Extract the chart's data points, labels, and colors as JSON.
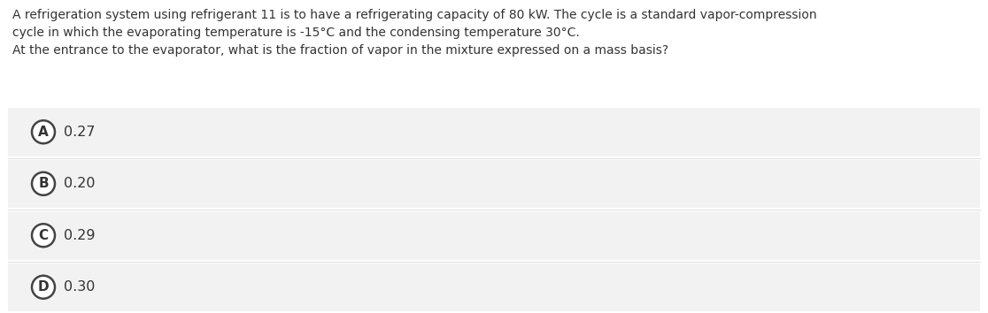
{
  "question_text_line1": "A refrigeration system using refrigerant 11 is to have a refrigerating capacity of 80 kW. The cycle is a standard vapor-compression",
  "question_text_line2": "cycle in which the evaporating temperature is -15°C and the condensing temperature 30°C.",
  "question_text_line3": "At the entrance to the evaporator, what is the fraction of vapor in the mixture expressed on a mass basis?",
  "options": [
    {
      "label": "A",
      "value": "0.27"
    },
    {
      "label": "B",
      "value": "0.20"
    },
    {
      "label": "C",
      "value": "0.29"
    },
    {
      "label": "D",
      "value": "0.30"
    }
  ],
  "bg_color": "#ffffff",
  "option_bg_color": "#f2f2f2",
  "separator_color": "#e0e0e0",
  "text_color": "#333333",
  "circle_edge_color": "#444444",
  "circle_face_color": "#ffffff",
  "font_size_question": 10.0,
  "font_size_option_value": 11.5,
  "font_size_label": 11.0,
  "fig_width": 11.16,
  "fig_height": 3.54,
  "dpi": 100
}
